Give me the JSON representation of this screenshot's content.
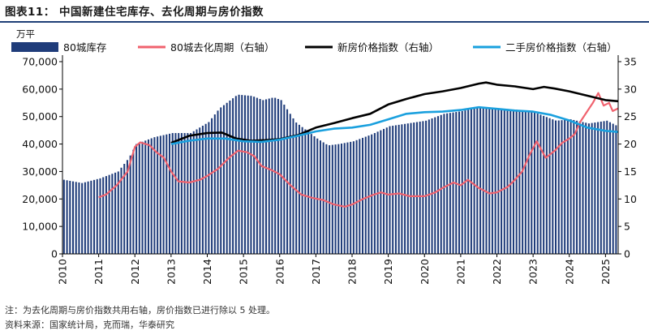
{
  "figure_title": "图表11：  中国新建住宅库存、去化周期与房价指数",
  "footnote": "注：为去化周期与房价指数共用右轴，房价指数已进行除以 5 处理。",
  "source": "资料来源：国家统计局，克而瑞，华泰研究",
  "colors": {
    "inventory": "#1f3c7a",
    "destock": "#f0626e",
    "new_price": "#000000",
    "second_price": "#1aa0de",
    "title_rule": "#1f3f77"
  },
  "chart_data": {
    "type": "bar+line",
    "unit_label": "万平",
    "left_axis": {
      "min": 0,
      "max": 70000,
      "ticks": [
        "0",
        "10,000",
        "20,000",
        "30,000",
        "40,000",
        "50,000",
        "60,000",
        "70,000"
      ]
    },
    "right_axis": {
      "min": 0,
      "max": 35,
      "ticks": [
        "0",
        "5",
        "10",
        "15",
        "20",
        "25",
        "30",
        "35"
      ]
    },
    "x_axis": {
      "start_year": 2010,
      "end_year": 2025.35,
      "ticks": [
        "2010",
        "2011",
        "2012",
        "2013",
        "2014",
        "2015",
        "2016",
        "2017",
        "2018",
        "2019",
        "2020",
        "2021",
        "2022",
        "2023",
        "2024",
        "2025"
      ]
    },
    "legend": [
      "80城库存",
      "80城去化周期（右轴）",
      "新房价格指数（右轴）",
      "二手房价格指数（右轴）"
    ],
    "series": [
      {
        "name": "80城库存",
        "kind": "bar",
        "axis": "left",
        "frequency": "monthly",
        "start": "2010-01",
        "points": [
          [
            2010.0,
            27000
          ],
          [
            2010.5,
            25800
          ],
          [
            2011.0,
            27500
          ],
          [
            2011.5,
            30000
          ],
          [
            2011.8,
            35000
          ],
          [
            2012.0,
            40000
          ],
          [
            2012.5,
            42500
          ],
          [
            2013.0,
            44000
          ],
          [
            2013.5,
            44000
          ],
          [
            2014.0,
            48000
          ],
          [
            2014.3,
            53000
          ],
          [
            2014.6,
            56000
          ],
          [
            2014.8,
            58000
          ],
          [
            2015.2,
            57500
          ],
          [
            2015.5,
            56000
          ],
          [
            2015.8,
            57000
          ],
          [
            2016.0,
            56000
          ],
          [
            2016.4,
            48000
          ],
          [
            2016.8,
            44000
          ],
          [
            2017.0,
            42000
          ],
          [
            2017.3,
            39500
          ],
          [
            2017.6,
            40000
          ],
          [
            2018.0,
            41000
          ],
          [
            2018.5,
            43500
          ],
          [
            2019.0,
            46500
          ],
          [
            2019.5,
            47500
          ],
          [
            2020.0,
            48500
          ],
          [
            2020.5,
            51000
          ],
          [
            2021.0,
            52000
          ],
          [
            2021.5,
            53500
          ],
          [
            2022.0,
            53000
          ],
          [
            2022.5,
            52500
          ],
          [
            2023.0,
            51500
          ],
          [
            2023.3,
            50000
          ],
          [
            2023.6,
            48500
          ],
          [
            2024.0,
            49000
          ],
          [
            2024.5,
            47500
          ],
          [
            2025.0,
            48500
          ],
          [
            2025.3,
            46500
          ]
        ]
      },
      {
        "name": "80城去化周期（右轴）",
        "kind": "line",
        "axis": "right",
        "points": [
          [
            2011.0,
            10.3
          ],
          [
            2011.2,
            10.8
          ],
          [
            2011.5,
            12.5
          ],
          [
            2011.8,
            15.0
          ],
          [
            2012.0,
            19.5
          ],
          [
            2012.15,
            20.3
          ],
          [
            2012.4,
            19.8
          ],
          [
            2012.6,
            18.5
          ],
          [
            2012.8,
            17.5
          ],
          [
            2013.0,
            15.0
          ],
          [
            2013.2,
            13.2
          ],
          [
            2013.5,
            13.0
          ],
          [
            2013.8,
            13.5
          ],
          [
            2014.0,
            14.2
          ],
          [
            2014.3,
            15.5
          ],
          [
            2014.6,
            17.5
          ],
          [
            2014.85,
            18.8
          ],
          [
            2015.1,
            18.5
          ],
          [
            2015.3,
            17.8
          ],
          [
            2015.5,
            16.0
          ],
          [
            2015.8,
            15.2
          ],
          [
            2016.0,
            14.5
          ],
          [
            2016.3,
            12.5
          ],
          [
            2016.6,
            10.8
          ],
          [
            2016.9,
            10.2
          ],
          [
            2017.2,
            9.8
          ],
          [
            2017.5,
            9.0
          ],
          [
            2017.8,
            8.6
          ],
          [
            2018.0,
            9.0
          ],
          [
            2018.3,
            10.0
          ],
          [
            2018.6,
            10.8
          ],
          [
            2018.8,
            11.2
          ],
          [
            2019.0,
            10.8
          ],
          [
            2019.3,
            11.0
          ],
          [
            2019.6,
            10.5
          ],
          [
            2020.0,
            10.5
          ],
          [
            2020.3,
            11.2
          ],
          [
            2020.5,
            12.0
          ],
          [
            2020.8,
            13.0
          ],
          [
            2021.0,
            12.5
          ],
          [
            2021.2,
            13.5
          ],
          [
            2021.5,
            12.0
          ],
          [
            2021.8,
            11.0
          ],
          [
            2022.0,
            11.2
          ],
          [
            2022.3,
            12.2
          ],
          [
            2022.5,
            13.5
          ],
          [
            2022.7,
            15.0
          ],
          [
            2022.9,
            18.0
          ],
          [
            2023.1,
            20.5
          ],
          [
            2023.35,
            17.5
          ],
          [
            2023.6,
            18.8
          ],
          [
            2023.8,
            20.2
          ],
          [
            2024.0,
            21.0
          ],
          [
            2024.15,
            21.8
          ],
          [
            2024.3,
            24.0
          ],
          [
            2024.5,
            26.0
          ],
          [
            2024.65,
            27.5
          ],
          [
            2024.8,
            29.3
          ],
          [
            2024.95,
            27.0
          ],
          [
            2025.1,
            27.5
          ],
          [
            2025.2,
            26.0
          ],
          [
            2025.35,
            26.5
          ]
        ]
      },
      {
        "name": "新房价格指数（右轴）",
        "kind": "line",
        "axis": "right",
        "points": [
          [
            2013.0,
            20.2
          ],
          [
            2013.5,
            21.5
          ],
          [
            2014.0,
            22.0
          ],
          [
            2014.4,
            22.1
          ],
          [
            2014.8,
            21.0
          ],
          [
            2015.2,
            20.6
          ],
          [
            2015.6,
            20.7
          ],
          [
            2016.0,
            20.9
          ],
          [
            2016.5,
            21.6
          ],
          [
            2017.0,
            23.0
          ],
          [
            2017.5,
            23.8
          ],
          [
            2018.0,
            24.7
          ],
          [
            2018.5,
            25.5
          ],
          [
            2019.0,
            27.2
          ],
          [
            2019.5,
            28.2
          ],
          [
            2020.0,
            29.1
          ],
          [
            2020.5,
            29.6
          ],
          [
            2021.0,
            30.2
          ],
          [
            2021.5,
            31.0
          ],
          [
            2021.7,
            31.2
          ],
          [
            2022.0,
            30.8
          ],
          [
            2022.5,
            30.5
          ],
          [
            2023.0,
            30.0
          ],
          [
            2023.3,
            30.4
          ],
          [
            2023.6,
            30.1
          ],
          [
            2024.0,
            29.6
          ],
          [
            2024.5,
            28.8
          ],
          [
            2025.0,
            28.0
          ],
          [
            2025.35,
            27.8
          ]
        ]
      },
      {
        "name": "二手房价格指数（右轴）",
        "kind": "line",
        "axis": "right",
        "points": [
          [
            2013.0,
            20.0
          ],
          [
            2013.5,
            20.6
          ],
          [
            2014.0,
            21.0
          ],
          [
            2014.5,
            21.0
          ],
          [
            2015.0,
            20.5
          ],
          [
            2015.5,
            20.4
          ],
          [
            2016.0,
            20.8
          ],
          [
            2016.5,
            21.5
          ],
          [
            2017.0,
            22.3
          ],
          [
            2017.5,
            22.8
          ],
          [
            2018.0,
            23.0
          ],
          [
            2018.5,
            23.5
          ],
          [
            2019.0,
            24.5
          ],
          [
            2019.5,
            25.5
          ],
          [
            2020.0,
            25.8
          ],
          [
            2020.5,
            25.9
          ],
          [
            2021.0,
            26.2
          ],
          [
            2021.5,
            26.7
          ],
          [
            2022.0,
            26.4
          ],
          [
            2022.5,
            26.1
          ],
          [
            2023.0,
            25.9
          ],
          [
            2023.5,
            25.3
          ],
          [
            2024.0,
            24.3
          ],
          [
            2024.5,
            23.0
          ],
          [
            2025.0,
            22.4
          ],
          [
            2025.35,
            22.2
          ]
        ]
      }
    ]
  }
}
